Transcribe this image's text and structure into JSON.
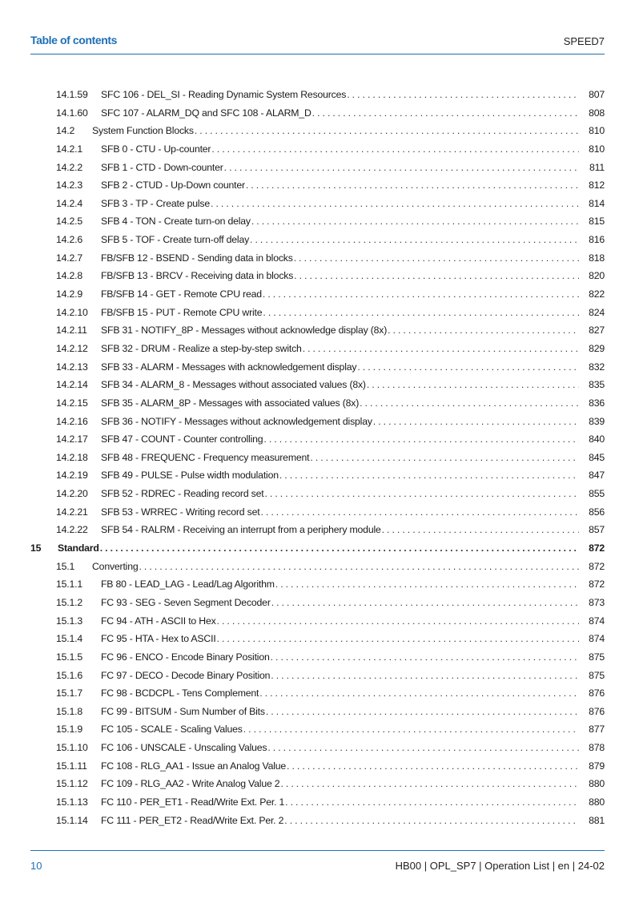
{
  "header": {
    "title": "Table of contents",
    "product": "SPEED7"
  },
  "colors": {
    "accent": "#1f6fb5"
  },
  "entries": [
    {
      "level": 3,
      "number": "14.1.59",
      "title": "SFC 106 - DEL_SI - Reading Dynamic System Resources",
      "page": "807"
    },
    {
      "level": 3,
      "number": "14.1.60",
      "title": "SFC 107 - ALARM_DQ and SFC 108 - ALARM_D",
      "page": "808"
    },
    {
      "level": 2,
      "number": "14.2",
      "title": "System Function Blocks",
      "page": "810"
    },
    {
      "level": 3,
      "number": "14.2.1",
      "title": "SFB 0 - CTU - Up-counter",
      "page": "810"
    },
    {
      "level": 3,
      "number": "14.2.2",
      "title": "SFB 1 - CTD - Down-counter",
      "page": "811"
    },
    {
      "level": 3,
      "number": "14.2.3",
      "title": "SFB 2 - CTUD - Up-Down counter",
      "page": "812"
    },
    {
      "level": 3,
      "number": "14.2.4",
      "title": "SFB 3 - TP - Create pulse",
      "page": "814"
    },
    {
      "level": 3,
      "number": "14.2.5",
      "title": "SFB 4 - TON - Create turn-on delay",
      "page": "815"
    },
    {
      "level": 3,
      "number": "14.2.6",
      "title": "SFB 5 - TOF - Create turn-off delay",
      "page": "816"
    },
    {
      "level": 3,
      "number": "14.2.7",
      "title": "FB/SFB 12 - BSEND - Sending data in blocks",
      "page": "818"
    },
    {
      "level": 3,
      "number": "14.2.8",
      "title": "FB/SFB 13 - BRCV - Receiving data in blocks",
      "page": "820"
    },
    {
      "level": 3,
      "number": "14.2.9",
      "title": "FB/SFB 14 - GET - Remote CPU read",
      "page": "822"
    },
    {
      "level": 3,
      "number": "14.2.10",
      "title": "FB/SFB 15 - PUT - Remote CPU write",
      "page": "824"
    },
    {
      "level": 3,
      "number": "14.2.11",
      "title": "SFB 31 - NOTIFY_8P - Messages without acknowledge display (8x)",
      "page": "827"
    },
    {
      "level": 3,
      "number": "14.2.12",
      "title": "SFB 32 - DRUM - Realize a step-by-step switch",
      "page": "829"
    },
    {
      "level": 3,
      "number": "14.2.13",
      "title": "SFB 33 - ALARM - Messages with acknowledgement display",
      "page": "832"
    },
    {
      "level": 3,
      "number": "14.2.14",
      "title": "SFB 34 - ALARM_8 - Messages without associated values (8x)",
      "page": "835"
    },
    {
      "level": 3,
      "number": "14.2.15",
      "title": "SFB 35 - ALARM_8P - Messages with associated values (8x)",
      "page": "836"
    },
    {
      "level": 3,
      "number": "14.2.16",
      "title": "SFB 36 - NOTIFY - Messages without acknowledgement display",
      "page": "839"
    },
    {
      "level": 3,
      "number": "14.2.17",
      "title": "SFB 47 - COUNT - Counter controlling",
      "page": "840"
    },
    {
      "level": 3,
      "number": "14.2.18",
      "title": "SFB 48 - FREQUENC - Frequency measurement",
      "page": "845"
    },
    {
      "level": 3,
      "number": "14.2.19",
      "title": "SFB 49 - PULSE - Pulse width modulation",
      "page": "847"
    },
    {
      "level": 3,
      "number": "14.2.20",
      "title": "SFB 52 - RDREC - Reading record set",
      "page": "855"
    },
    {
      "level": 3,
      "number": "14.2.21",
      "title": "SFB 53 - WRREC - Writing record set",
      "page": "856"
    },
    {
      "level": 3,
      "number": "14.2.22",
      "title": "SFB 54 - RALRM - Receiving an interrupt from a periphery module",
      "page": "857"
    },
    {
      "level": 1,
      "number": "15",
      "title": "Standard",
      "page": "872"
    },
    {
      "level": 2,
      "number": "15.1",
      "title": "Converting",
      "page": "872"
    },
    {
      "level": 3,
      "number": "15.1.1",
      "title": "FB 80 - LEAD_LAG - Lead/Lag Algorithm",
      "page": "872"
    },
    {
      "level": 3,
      "number": "15.1.2",
      "title": "FC 93 - SEG - Seven Segment Decoder",
      "page": "873"
    },
    {
      "level": 3,
      "number": "15.1.3",
      "title": "FC 94 - ATH - ASCII to Hex",
      "page": "874"
    },
    {
      "level": 3,
      "number": "15.1.4",
      "title": "FC 95 - HTA - Hex to ASCII",
      "page": "874"
    },
    {
      "level": 3,
      "number": "15.1.5",
      "title": "FC 96 - ENCO - Encode Binary Position",
      "page": "875"
    },
    {
      "level": 3,
      "number": "15.1.6",
      "title": "FC 97 - DECO - Decode Binary Position",
      "page": "875"
    },
    {
      "level": 3,
      "number": "15.1.7",
      "title": "FC 98 - BCDCPL - Tens Complement",
      "page": "876"
    },
    {
      "level": 3,
      "number": "15.1.8",
      "title": "FC 99 - BITSUM - Sum Number of Bits",
      "page": "876"
    },
    {
      "level": 3,
      "number": "15.1.9",
      "title": "FC 105 - SCALE - Scaling Values",
      "page": "877"
    },
    {
      "level": 3,
      "number": "15.1.10",
      "title": "FC 106 - UNSCALE - Unscaling Values",
      "page": "878"
    },
    {
      "level": 3,
      "number": "15.1.11",
      "title": "FC 108 - RLG_AA1 - Issue an Analog Value",
      "page": "879"
    },
    {
      "level": 3,
      "number": "15.1.12",
      "title": "FC 109 - RLG_AA2 - Write Analog Value 2",
      "page": "880"
    },
    {
      "level": 3,
      "number": "15.1.13",
      "title": "FC 110 - PER_ET1 - Read/Write Ext. Per. 1",
      "page": "880"
    },
    {
      "level": 3,
      "number": "15.1.14",
      "title": "FC 111 - PER_ET2 - Read/Write Ext. Per. 2",
      "page": "881"
    }
  ],
  "footer": {
    "page_number": "10",
    "doc_info": "HB00 | OPL_SP7 | Operation List | en | 24-02"
  }
}
